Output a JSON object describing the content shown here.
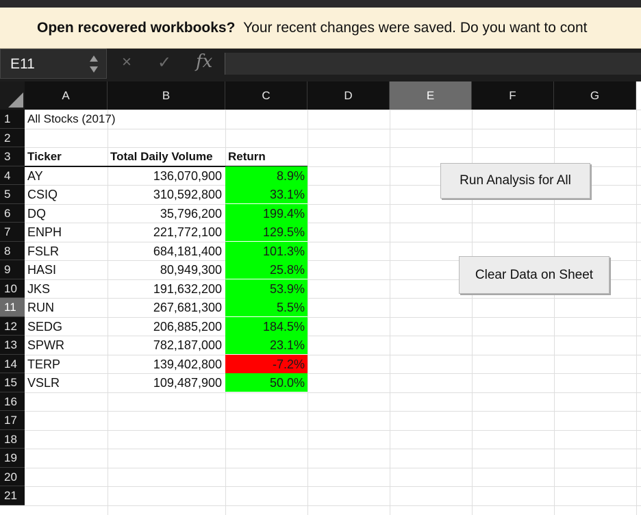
{
  "banner": {
    "bold": "Open recovered workbooks?",
    "text": "Your recent changes were saved. Do you want to cont"
  },
  "formula_bar": {
    "name_box": "E11",
    "cancel_icon": "×",
    "enter_icon": "✓",
    "fx_label": "fx",
    "formula": ""
  },
  "columns": [
    "A",
    "B",
    "C",
    "D",
    "E",
    "F",
    "G"
  ],
  "selected_column": "E",
  "rows": [
    "1",
    "2",
    "3",
    "4",
    "5",
    "6",
    "7",
    "8",
    "9",
    "10",
    "11",
    "12",
    "13",
    "14",
    "15",
    "16",
    "17",
    "18",
    "19",
    "20",
    "21"
  ],
  "selected_row": "11",
  "sheet": {
    "title": "All Stocks (2017)",
    "headers": {
      "ticker": "Ticker",
      "volume": "Total Daily Volume",
      "return": "Return"
    },
    "data": [
      {
        "ticker": "AY",
        "volume": "136,070,900",
        "return": "8.9%",
        "positive": true
      },
      {
        "ticker": "CSIQ",
        "volume": "310,592,800",
        "return": "33.1%",
        "positive": true
      },
      {
        "ticker": "DQ",
        "volume": "35,796,200",
        "return": "199.4%",
        "positive": true
      },
      {
        "ticker": "ENPH",
        "volume": "221,772,100",
        "return": "129.5%",
        "positive": true
      },
      {
        "ticker": "FSLR",
        "volume": "684,181,400",
        "return": "101.3%",
        "positive": true
      },
      {
        "ticker": "HASI",
        "volume": "80,949,300",
        "return": "25.8%",
        "positive": true
      },
      {
        "ticker": "JKS",
        "volume": "191,632,200",
        "return": "53.9%",
        "positive": true
      },
      {
        "ticker": "RUN",
        "volume": "267,681,300",
        "return": "5.5%",
        "positive": true
      },
      {
        "ticker": "SEDG",
        "volume": "206,885,200",
        "return": "184.5%",
        "positive": true
      },
      {
        "ticker": "SPWR",
        "volume": "782,187,000",
        "return": "23.1%",
        "positive": true
      },
      {
        "ticker": "TERP",
        "volume": "139,402,800",
        "return": "-7.2%",
        "positive": false
      },
      {
        "ticker": "VSLR",
        "volume": "109,487,900",
        "return": "50.0%",
        "positive": true
      }
    ]
  },
  "buttons": {
    "run_analysis": "Run Analysis for All",
    "clear_data": "Clear Data on Sheet"
  },
  "colors": {
    "positive": "#00ff00",
    "negative": "#ff0000",
    "banner_bg": "#fbf1d8"
  }
}
